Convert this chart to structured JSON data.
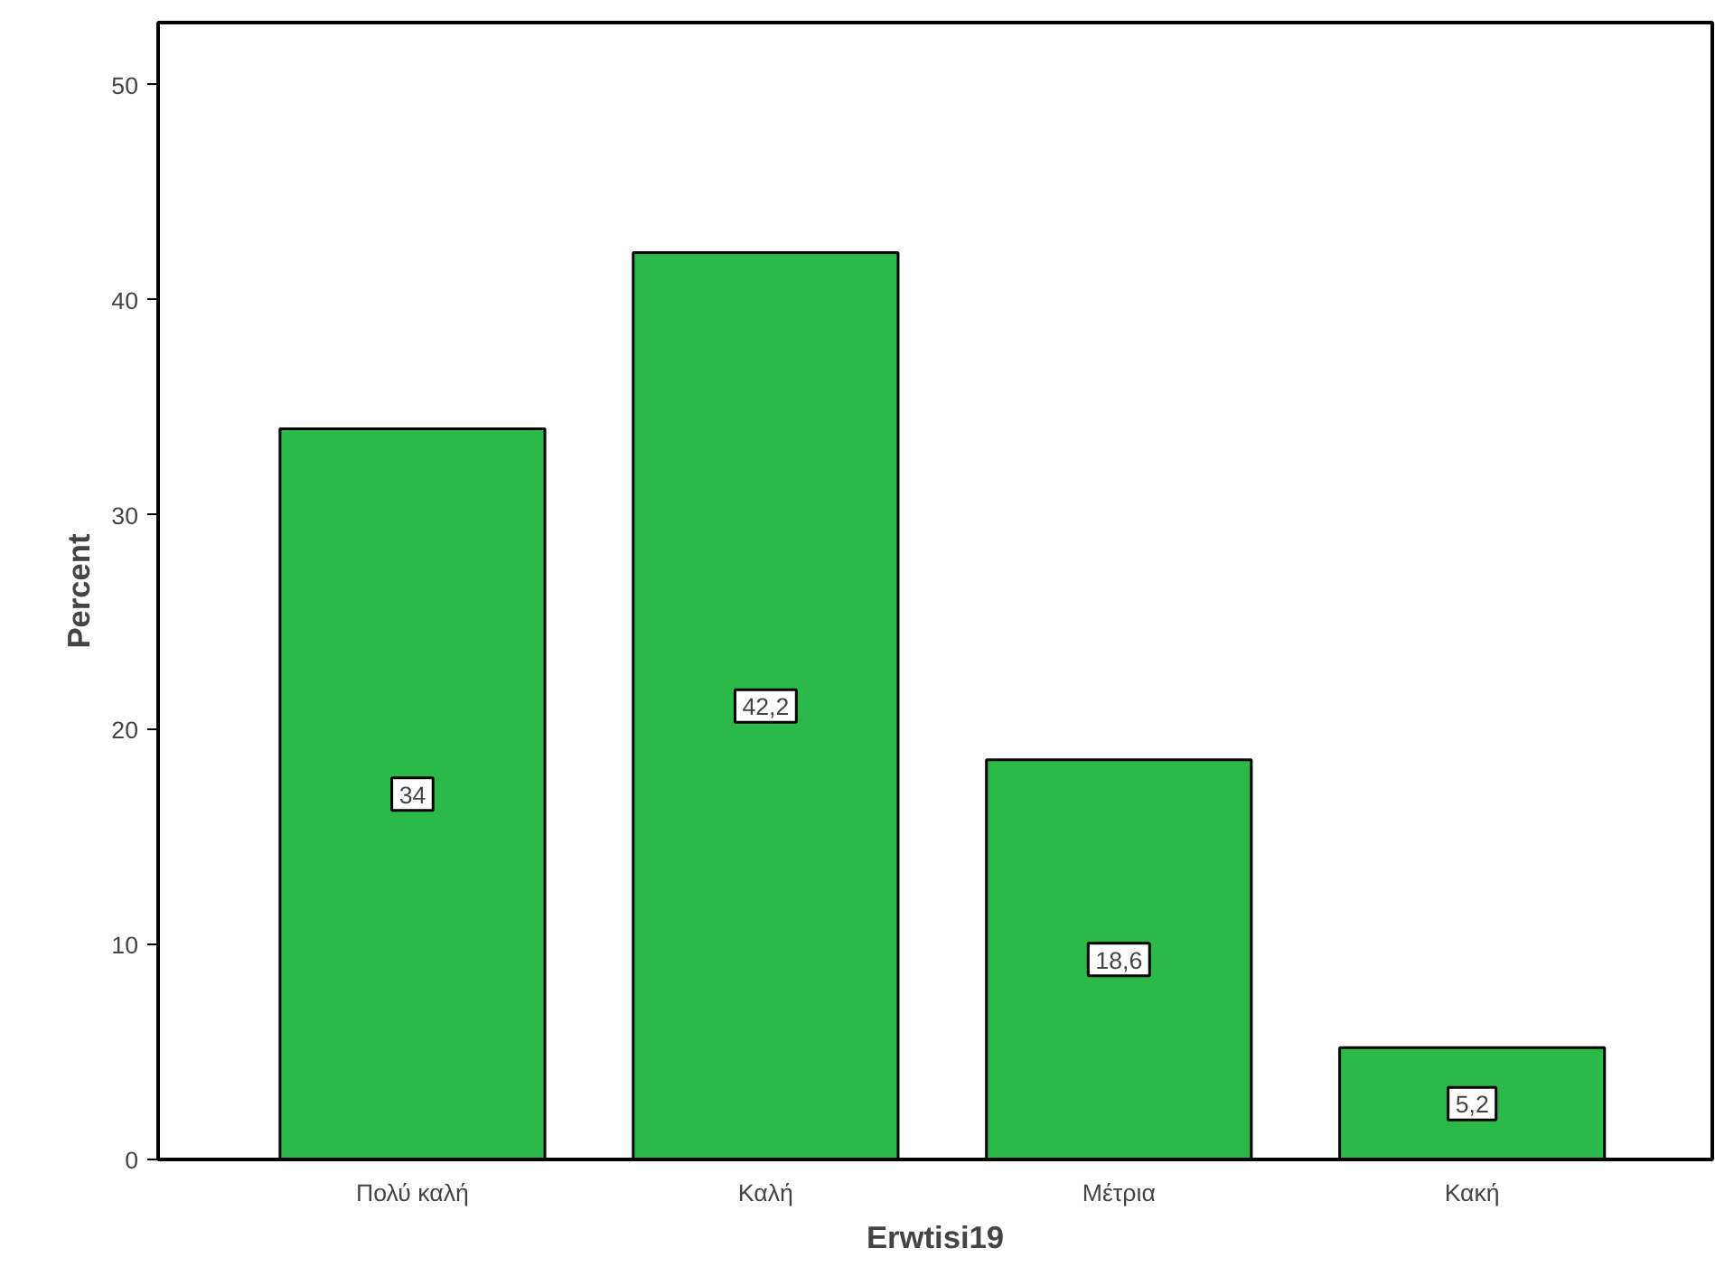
{
  "chart_data": {
    "type": "bar",
    "xlabel": "Erwtisi19",
    "ylabel": "Percent",
    "categories": [
      "Πολύ καλή",
      "Καλή",
      "Μέτρια",
      "Κακή"
    ],
    "values": [
      34,
      42.2,
      18.6,
      5.2
    ],
    "value_labels": [
      "34",
      "42,2",
      "18,6",
      "5,2"
    ],
    "color": "#2db84a",
    "ylim": [
      0,
      52.9
    ],
    "yticks": [
      0,
      10,
      20,
      30,
      40,
      50
    ],
    "grid": false
  }
}
